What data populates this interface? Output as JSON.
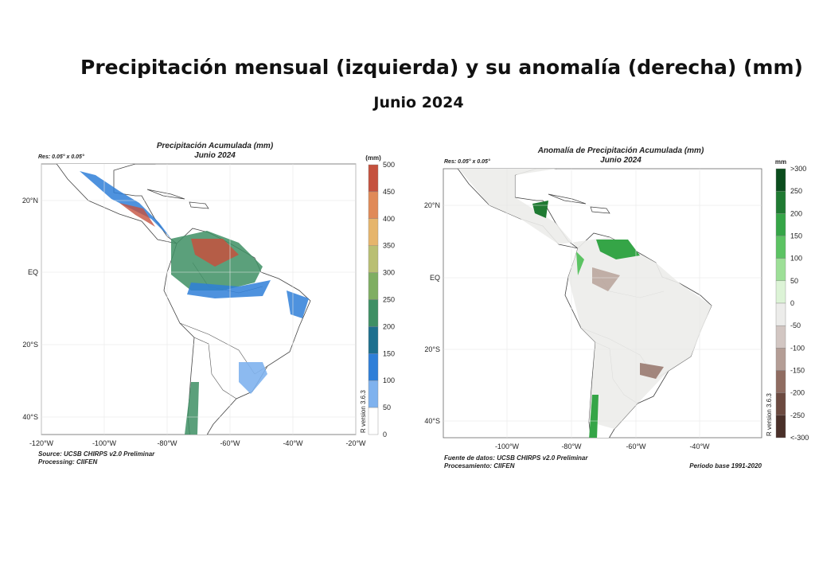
{
  "header": {
    "title": "Precipitación mensual (izquierda) y su anomalía (derecha) (mm)",
    "subtitle": "Junio 2024"
  },
  "left_map": {
    "title": "Precipitación Acumulada (mm)",
    "subtitle": "Junio 2024",
    "resolution": "Res: 0.05° x 0.05°",
    "unit": "(mm)",
    "colorbar": {
      "labels": [
        500,
        450,
        400,
        350,
        300,
        250,
        200,
        150,
        100,
        50,
        0
      ],
      "colors": [
        "#c5513e",
        "#e08a58",
        "#e6b56c",
        "#b9bf73",
        "#7fae62",
        "#3e8f64",
        "#1d6f8e",
        "#2f7fd8",
        "#7fb2ee",
        "#ffffff"
      ]
    },
    "lon_labels": [
      "-120°W",
      "-100°W",
      "-80°W",
      "-60°W",
      "-40°W",
      "-20°W"
    ],
    "lat_labels": [
      "20°N",
      "EQ",
      "20°S",
      "40°S"
    ],
    "version": "R version 3.6.3",
    "source": "Source: UCSB CHIRPS v2.0 Preliminar",
    "processing": "Processing:  CIIFEN"
  },
  "right_map": {
    "title": "Anomalía de Precipitación Acumulada (mm)",
    "subtitle": "Junio 2024",
    "resolution": "Res: 0.05° x 0.05°",
    "unit": "mm",
    "colorbar": {
      "labels": [
        ">300",
        250,
        200,
        150,
        100,
        50,
        0,
        -50,
        -100,
        -150,
        -200,
        -250,
        "<-300"
      ],
      "colors": [
        "#0b4d1d",
        "#1f7a32",
        "#35a547",
        "#5cc363",
        "#9ddf97",
        "#dcf3d6",
        "#ececea",
        "#d2c6c2",
        "#b49d95",
        "#8f6c61",
        "#6c4a40",
        "#4a3029"
      ]
    },
    "lon_labels": [
      "-100°W",
      "-80°W",
      "-60°W",
      "-40°W"
    ],
    "lat_labels": [
      "20°N",
      "EQ",
      "20°S",
      "40°S"
    ],
    "version": "R version 3.6.3",
    "source": "Fuente de datos: UCSB CHIRPS v2.0 Preliminar",
    "processing": "Procesamiento: CIIFEN",
    "base_period": "Periodo base 1991-2020"
  }
}
